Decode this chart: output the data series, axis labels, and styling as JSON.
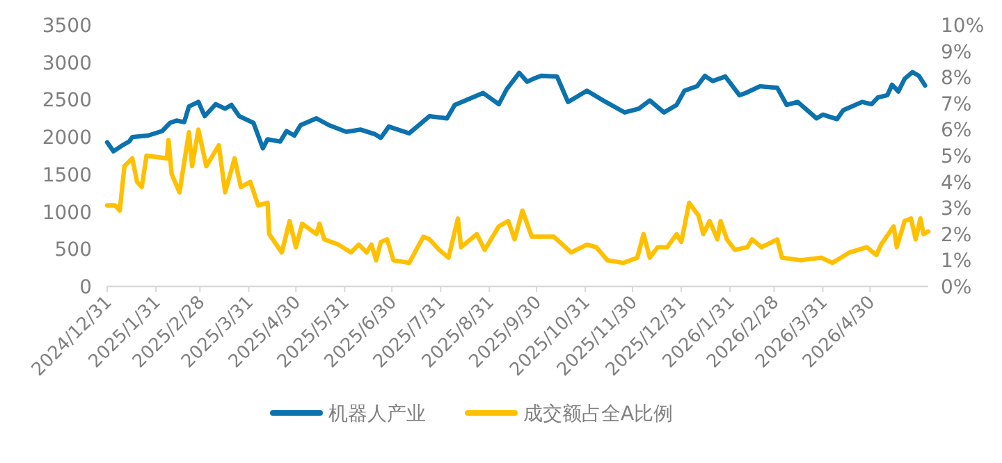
{
  "chart_data": {
    "type": "line",
    "legend": "bottom",
    "grid": false,
    "marker": "none",
    "line_style": "solid",
    "xlim": [
      "2024-12-31",
      "2026-06-06"
    ],
    "xticks": [
      {
        "value": "2024-12-31",
        "label": "2024/12/31"
      },
      {
        "value": "2025-01-31",
        "label": "2025/1/31"
      },
      {
        "value": "2025-02-28",
        "label": "2025/2/28"
      },
      {
        "value": "2025-03-31",
        "label": "2025/3/31"
      },
      {
        "value": "2025-04-30",
        "label": "2025/4/30"
      },
      {
        "value": "2025-05-31",
        "label": "2025/5/31"
      },
      {
        "value": "2025-06-30",
        "label": "2025/6/30"
      },
      {
        "value": "2025-07-31",
        "label": "2025/7/31"
      },
      {
        "value": "2025-08-31",
        "label": "2025/8/31"
      },
      {
        "value": "2025-09-30",
        "label": "2025/9/30"
      },
      {
        "value": "2025-10-31",
        "label": "2025/10/31"
      },
      {
        "value": "2025-11-30",
        "label": "2025/11/30"
      },
      {
        "value": "2025-12-31",
        "label": "2025/12/31"
      },
      {
        "value": "2026-01-31",
        "label": "2026/1/31"
      },
      {
        "value": "2026-02-28",
        "label": "2026/2/28"
      },
      {
        "value": "2026-03-31",
        "label": "2026/3/31"
      },
      {
        "value": "2026-04-30",
        "label": "2026/4/30"
      }
    ],
    "ylim": [
      0,
      3500
    ],
    "yticks": [
      0,
      500,
      1000,
      1500,
      2000,
      2500,
      3000,
      3500
    ],
    "y2lim": [
      0,
      10
    ],
    "y2ticks": [
      {
        "value": 0,
        "label": "0%"
      },
      {
        "value": 1,
        "label": "1%"
      },
      {
        "value": 2,
        "label": "2%"
      },
      {
        "value": 3,
        "label": "3%"
      },
      {
        "value": 4,
        "label": "4%"
      },
      {
        "value": 5,
        "label": "5%"
      },
      {
        "value": 6,
        "label": "6%"
      },
      {
        "value": 7,
        "label": "7%"
      },
      {
        "value": 8,
        "label": "8%"
      },
      {
        "value": 9,
        "label": "9%"
      },
      {
        "value": 10,
        "label": "10%"
      }
    ],
    "series": [
      {
        "name": "机器人产业",
        "color": "#0b72ae",
        "axis": "y",
        "x": [
          "2024-12-31",
          "2025-01-04",
          "2025-01-09",
          "2025-01-14",
          "2025-01-16",
          "2025-01-26",
          "2025-02-04",
          "2025-02-09",
          "2025-02-13",
          "2025-02-18",
          "2025-02-21",
          "2025-02-27",
          "2025-03-03",
          "2025-03-10",
          "2025-03-16",
          "2025-03-20",
          "2025-03-25",
          "2025-04-03",
          "2025-04-09",
          "2025-04-12",
          "2025-04-20",
          "2025-04-24",
          "2025-04-29",
          "2025-05-03",
          "2025-05-13",
          "2025-05-21",
          "2025-06-01",
          "2025-06-10",
          "2025-06-19",
          "2025-06-23",
          "2025-06-28",
          "2025-07-11",
          "2025-07-24",
          "2025-08-04",
          "2025-08-09",
          "2025-08-27",
          "2025-09-06",
          "2025-09-11",
          "2025-09-19",
          "2025-09-24",
          "2025-09-28",
          "2025-10-03",
          "2025-10-13",
          "2025-10-20",
          "2025-11-01",
          "2025-11-13",
          "2025-11-25",
          "2025-12-04",
          "2025-12-11",
          "2025-12-20",
          "2025-12-28",
          "2026-01-02",
          "2026-01-10",
          "2026-01-15",
          "2026-01-20",
          "2026-01-28",
          "2026-02-06",
          "2026-02-10",
          "2026-02-19",
          "2026-03-02",
          "2026-03-08",
          "2026-03-15",
          "2026-03-27",
          "2026-03-31",
          "2026-04-09",
          "2026-04-13",
          "2026-04-25",
          "2026-05-01",
          "2026-05-05",
          "2026-05-11",
          "2026-05-14",
          "2026-05-18",
          "2026-05-22",
          "2026-05-27",
          "2026-05-31",
          "2026-06-04"
        ],
        "values": [
          1930,
          1810,
          1880,
          1940,
          2000,
          2020,
          2080,
          2190,
          2220,
          2200,
          2410,
          2470,
          2280,
          2440,
          2380,
          2430,
          2280,
          2190,
          1850,
          1970,
          1940,
          2080,
          2020,
          2160,
          2250,
          2160,
          2070,
          2100,
          2040,
          1990,
          2140,
          2050,
          2280,
          2250,
          2430,
          2590,
          2440,
          2640,
          2860,
          2740,
          2780,
          2820,
          2810,
          2470,
          2620,
          2470,
          2330,
          2380,
          2490,
          2330,
          2430,
          2620,
          2680,
          2820,
          2750,
          2810,
          2560,
          2590,
          2680,
          2660,
          2430,
          2470,
          2250,
          2300,
          2240,
          2360,
          2470,
          2440,
          2530,
          2560,
          2700,
          2610,
          2780,
          2870,
          2820,
          2690
        ]
      },
      {
        "name": "成交额占全A比例",
        "color": "#ffc000",
        "axis": "y2",
        "x": [
          "2024-12-31",
          "2025-01-05",
          "2025-01-08",
          "2025-01-11",
          "2025-01-16",
          "2025-01-19",
          "2025-01-22",
          "2025-01-25",
          "2025-02-07",
          "2025-02-08",
          "2025-02-10",
          "2025-02-15",
          "2025-02-21",
          "2025-02-23",
          "2025-02-27",
          "2025-03-04",
          "2025-03-12",
          "2025-03-16",
          "2025-03-22",
          "2025-03-26",
          "2025-04-01",
          "2025-04-06",
          "2025-04-12",
          "2025-04-13",
          "2025-04-21",
          "2025-04-26",
          "2025-04-30",
          "2025-05-04",
          "2025-05-13",
          "2025-05-15",
          "2025-05-18",
          "2025-05-27",
          "2025-06-04",
          "2025-06-09",
          "2025-06-14",
          "2025-06-17",
          "2025-06-20",
          "2025-06-23",
          "2025-06-27",
          "2025-07-01",
          "2025-07-11",
          "2025-07-20",
          "2025-07-24",
          "2025-07-30",
          "2025-08-05",
          "2025-08-11",
          "2025-08-13",
          "2025-08-23",
          "2025-08-28",
          "2025-09-06",
          "2025-09-12",
          "2025-09-16",
          "2025-09-21",
          "2025-09-27",
          "2025-10-11",
          "2025-10-22",
          "2025-11-01",
          "2025-11-07",
          "2025-11-14",
          "2025-11-24",
          "2025-12-03",
          "2025-12-07",
          "2025-12-11",
          "2025-12-16",
          "2025-12-22",
          "2025-12-28",
          "2025-12-31",
          "2026-01-05",
          "2026-01-11",
          "2026-01-14",
          "2026-01-18",
          "2026-01-23",
          "2026-01-25",
          "2026-01-29",
          "2026-02-03",
          "2026-02-11",
          "2026-02-14",
          "2026-02-20",
          "2026-03-02",
          "2026-03-05",
          "2026-03-17",
          "2026-03-30",
          "2026-04-06",
          "2026-04-17",
          "2026-04-28",
          "2026-05-04",
          "2026-05-07",
          "2026-05-15",
          "2026-05-17",
          "2026-05-22",
          "2026-05-26",
          "2026-05-29",
          "2026-06-01",
          "2026-06-03",
          "2026-06-06"
        ],
        "values": [
          3.1,
          3.1,
          2.9,
          4.6,
          4.9,
          4.0,
          3.8,
          5.0,
          4.9,
          5.6,
          4.3,
          3.6,
          5.9,
          4.6,
          6.0,
          4.6,
          5.4,
          3.6,
          4.9,
          3.8,
          4.0,
          3.1,
          3.2,
          2.0,
          1.3,
          2.5,
          1.5,
          2.4,
          2.0,
          2.4,
          1.8,
          1.6,
          1.3,
          1.6,
          1.3,
          1.6,
          1.0,
          1.7,
          1.8,
          1.0,
          0.9,
          1.9,
          1.8,
          1.4,
          1.1,
          2.6,
          1.5,
          2.0,
          1.4,
          2.3,
          2.5,
          1.8,
          2.9,
          1.9,
          1.9,
          1.3,
          1.6,
          1.5,
          1.0,
          0.9,
          1.1,
          2.0,
          1.1,
          1.5,
          1.5,
          2.0,
          1.7,
          3.2,
          2.7,
          2.0,
          2.5,
          1.8,
          2.5,
          1.8,
          1.4,
          1.5,
          1.8,
          1.5,
          1.8,
          1.1,
          1.0,
          1.1,
          0.9,
          1.3,
          1.5,
          1.2,
          1.6,
          2.3,
          1.5,
          2.5,
          2.6,
          1.8,
          2.6,
          2.0,
          2.1
        ]
      }
    ]
  }
}
